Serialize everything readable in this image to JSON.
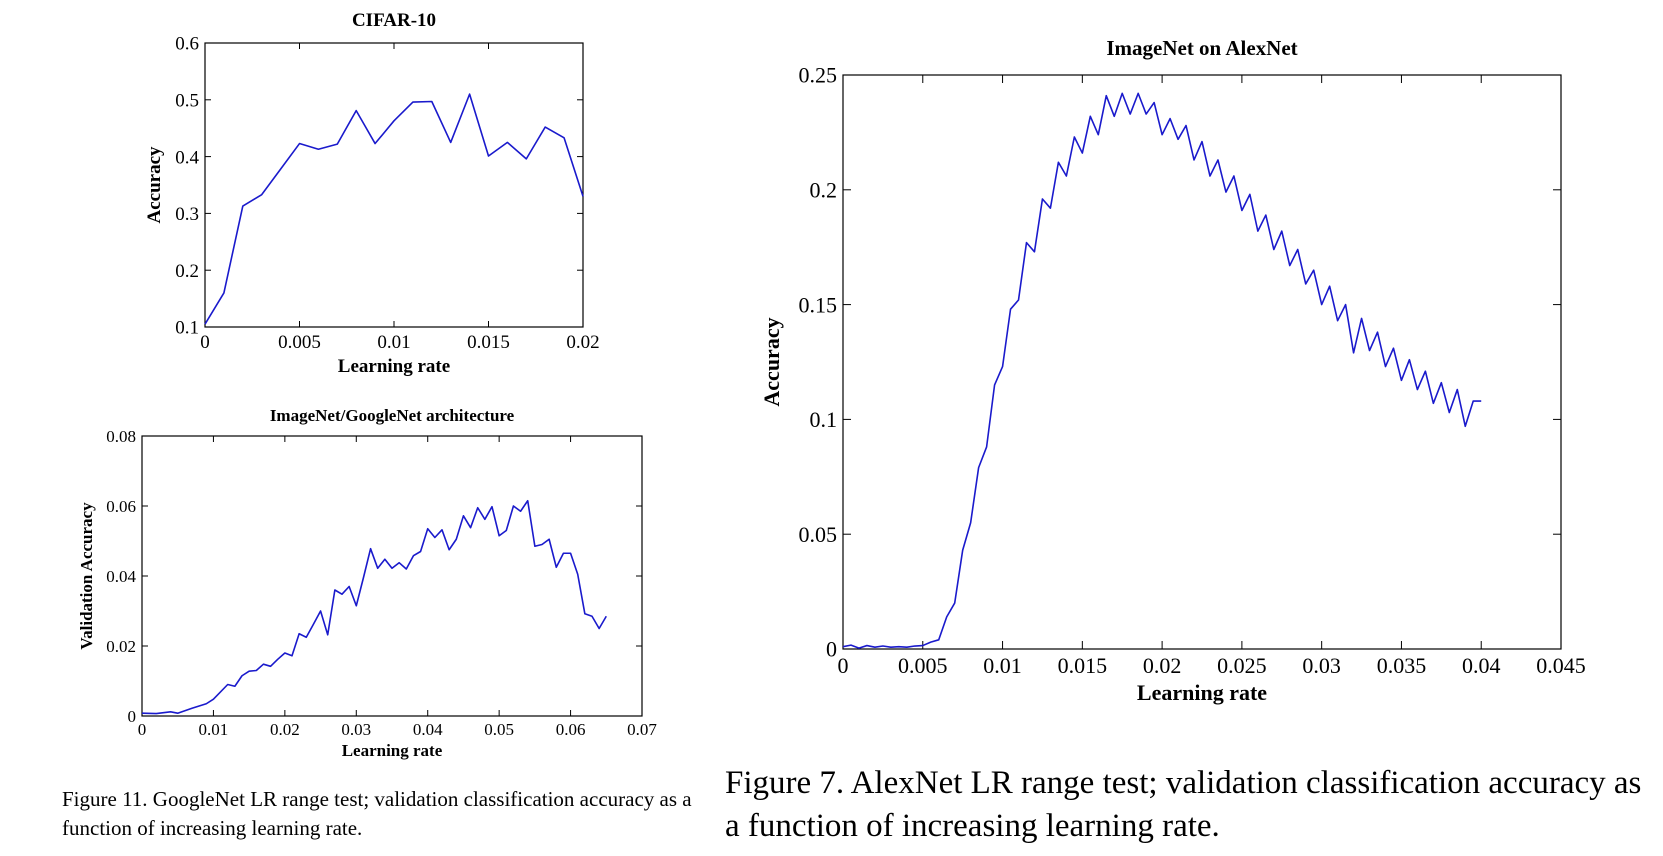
{
  "chart_data": [
    {
      "id": "cifar",
      "type": "line",
      "title": "CIFAR-10",
      "xlabel": "Learning rate",
      "ylabel": "Accuracy",
      "xlim": [
        0,
        0.02
      ],
      "ylim": [
        0.1,
        0.6
      ],
      "xticks": [
        0,
        0.005,
        0.01,
        0.015,
        0.02
      ],
      "xtick_labels": [
        "0",
        "0.005",
        "0.01",
        "0.015",
        "0.02"
      ],
      "yticks": [
        0.1,
        0.2,
        0.3,
        0.4,
        0.5,
        0.6
      ],
      "ytick_labels": [
        "0.1",
        "0.2",
        "0.3",
        "0.4",
        "0.5",
        "0.6"
      ],
      "color": "#1a1acc",
      "series": [
        {
          "x": [
            0,
            0.001,
            0.002,
            0.003,
            0.004,
            0.005,
            0.006,
            0.007,
            0.008,
            0.009,
            0.01,
            0.011,
            0.012,
            0.013,
            0.014,
            0.015,
            0.016,
            0.017,
            0.018,
            0.019,
            0.02
          ],
          "y": [
            0.105,
            0.16,
            0.313,
            0.333,
            0.378,
            0.423,
            0.413,
            0.422,
            0.481,
            0.423,
            0.463,
            0.496,
            0.497,
            0.425,
            0.51,
            0.401,
            0.425,
            0.396,
            0.452,
            0.433,
            0.33
          ]
        }
      ]
    },
    {
      "id": "googlenet",
      "type": "line",
      "title": "ImageNet/GoogleNet architecture",
      "xlabel": "Learning rate",
      "ylabel": "Validation Accuracy",
      "xlim": [
        0,
        0.07
      ],
      "ylim": [
        0,
        0.08
      ],
      "xticks": [
        0,
        0.01,
        0.02,
        0.03,
        0.04,
        0.05,
        0.06,
        0.07
      ],
      "xtick_labels": [
        "0",
        "0.01",
        "0.02",
        "0.03",
        "0.04",
        "0.05",
        "0.06",
        "0.07"
      ],
      "yticks": [
        0,
        0.02,
        0.04,
        0.06,
        0.08
      ],
      "ytick_labels": [
        "0",
        "0.02",
        "0.04",
        "0.06",
        "0.08"
      ],
      "color": "#1a1acc",
      "series": [
        {
          "x": [
            0,
            0.002,
            0.004,
            0.005,
            0.007,
            0.009,
            0.01,
            0.012,
            0.013,
            0.014,
            0.015,
            0.016,
            0.017,
            0.018,
            0.019,
            0.02,
            0.021,
            0.022,
            0.023,
            0.024,
            0.025,
            0.026,
            0.027,
            0.028,
            0.029,
            0.03,
            0.031,
            0.032,
            0.033,
            0.034,
            0.035,
            0.036,
            0.037,
            0.038,
            0.039,
            0.04,
            0.041,
            0.042,
            0.043,
            0.044,
            0.045,
            0.046,
            0.047,
            0.048,
            0.049,
            0.05,
            0.051,
            0.052,
            0.053,
            0.054,
            0.055,
            0.056,
            0.057,
            0.058,
            0.059,
            0.06,
            0.061,
            0.062,
            0.063,
            0.064,
            0.065
          ],
          "y": [
            0.0008,
            0.0007,
            0.0012,
            0.0008,
            0.0022,
            0.0035,
            0.0048,
            0.009,
            0.0085,
            0.0115,
            0.0128,
            0.013,
            0.0148,
            0.0142,
            0.0162,
            0.018,
            0.0172,
            0.0235,
            0.0225,
            0.0262,
            0.03,
            0.0232,
            0.036,
            0.0348,
            0.037,
            0.0315,
            0.0395,
            0.0478,
            0.0422,
            0.0448,
            0.0422,
            0.0438,
            0.042,
            0.0458,
            0.047,
            0.0535,
            0.051,
            0.0532,
            0.0475,
            0.0505,
            0.0572,
            0.0538,
            0.0595,
            0.0562,
            0.0598,
            0.0515,
            0.053,
            0.06,
            0.0585,
            0.0615,
            0.0485,
            0.049,
            0.0505,
            0.0425,
            0.0465,
            0.0465,
            0.0405,
            0.0292,
            0.0285,
            0.025,
            0.0285
          ]
        }
      ]
    },
    {
      "id": "alexnet",
      "type": "line",
      "title": "ImageNet on AlexNet",
      "xlabel": "Learning rate",
      "ylabel": "Accuracy",
      "xlim": [
        0,
        0.045
      ],
      "ylim": [
        0,
        0.25
      ],
      "xticks": [
        0,
        0.005,
        0.01,
        0.015,
        0.02,
        0.025,
        0.03,
        0.035,
        0.04,
        0.045
      ],
      "xtick_labels": [
        "0",
        "0.005",
        "0.01",
        "0.015",
        "0.02",
        "0.025",
        "0.03",
        "0.035",
        "0.04",
        "0.045"
      ],
      "yticks": [
        0,
        0.05,
        0.1,
        0.15,
        0.2,
        0.25
      ],
      "ytick_labels": [
        "0",
        "0.05",
        "0.1",
        "0.15",
        "0.2",
        "0.25"
      ],
      "color": "#1a1acc",
      "series": [
        {
          "x": [
            0,
            0.0005,
            0.001,
            0.0015,
            0.002,
            0.0025,
            0.003,
            0.0035,
            0.004,
            0.0045,
            0.005,
            0.0055,
            0.006,
            0.0065,
            0.007,
            0.0075,
            0.008,
            0.0085,
            0.009,
            0.0095,
            0.01,
            0.0105,
            0.011,
            0.0115,
            0.012,
            0.0125,
            0.013,
            0.0135,
            0.014,
            0.0145,
            0.015,
            0.0155,
            0.016,
            0.0165,
            0.017,
            0.0175,
            0.018,
            0.0185,
            0.019,
            0.0195,
            0.02,
            0.0205,
            0.021,
            0.0215,
            0.022,
            0.0225,
            0.023,
            0.0235,
            0.024,
            0.0245,
            0.025,
            0.0255,
            0.026,
            0.0265,
            0.027,
            0.0275,
            0.028,
            0.0285,
            0.029,
            0.0295,
            0.03,
            0.0305,
            0.031,
            0.0315,
            0.032,
            0.0325,
            0.033,
            0.0335,
            0.034,
            0.0345,
            0.035,
            0.0355,
            0.036,
            0.0365,
            0.037,
            0.0375,
            0.038,
            0.0385,
            0.039,
            0.0395,
            0.04
          ],
          "y": [
            0.001,
            0.0012,
            0.0008,
            0.0012,
            0.001,
            0.0009,
            0.0011,
            0.0008,
            0.0012,
            0.001,
            0.0015,
            0.002,
            0.005,
            0.012,
            0.022,
            0.04,
            0.058,
            0.075,
            0.092,
            0.11,
            0.128,
            0.142,
            0.158,
            0.17,
            0.18,
            0.19,
            0.198,
            0.205,
            0.212,
            0.218,
            0.221,
            0.226,
            0.23,
            0.234,
            0.238,
            0.236,
            0.24,
            0.236,
            0.238,
            0.232,
            0.23,
            0.226,
            0.228,
            0.222,
            0.218,
            0.215,
            0.212,
            0.208,
            0.205,
            0.2,
            0.196,
            0.192,
            0.188,
            0.184,
            0.18,
            0.176,
            0.172,
            0.168,
            0.165,
            0.16,
            0.156,
            0.152,
            0.148,
            0.144,
            0.141,
            0.138,
            0.135,
            0.132,
            0.129,
            0.126,
            0.123,
            0.12,
            0.118,
            0.115,
            0.113,
            0.111,
            0.109,
            0.107,
            0.105,
            0.103,
            0.102
          ],
          "y_noise": [
            0,
            0.0005,
            -0.0004,
            0.0003,
            -0.0002,
            0.0004,
            -0.0003,
            0.0002,
            -0.0004,
            0.0003,
            0,
            0.001,
            -0.001,
            0.002,
            -0.002,
            0.003,
            -0.003,
            0.004,
            -0.004,
            0.005,
            -0.005,
            0.006,
            -0.006,
            0.007,
            -0.007,
            0.006,
            -0.006,
            0.007,
            -0.006,
            0.005,
            -0.005,
            0.006,
            -0.006,
            0.007,
            -0.006,
            0.006,
            -0.007,
            0.006,
            -0.005,
            0.006,
            -0.006,
            0.005,
            -0.006,
            0.006,
            -0.005,
            0.006,
            -0.006,
            0.005,
            -0.006,
            0.006,
            -0.005,
            0.006,
            -0.006,
            0.005,
            -0.006,
            0.006,
            -0.005,
            0.006,
            -0.006,
            0.005,
            -0.006,
            0.006,
            -0.005,
            0.006,
            -0.012,
            0.006,
            -0.005,
            0.006,
            -0.006,
            0.005,
            -0.006,
            0.006,
            -0.005,
            0.006,
            -0.006,
            0.005,
            -0.006,
            0.006,
            -0.008,
            0.005,
            0.006
          ]
        }
      ]
    }
  ],
  "captions": {
    "fig11": "Figure 11. GoogleNet LR range test; validation classification accuracy as a function of increasing learning rate.",
    "fig7": "Figure 7. AlexNet LR range test; validation classification accuracy as a function of increasing learning rate."
  }
}
